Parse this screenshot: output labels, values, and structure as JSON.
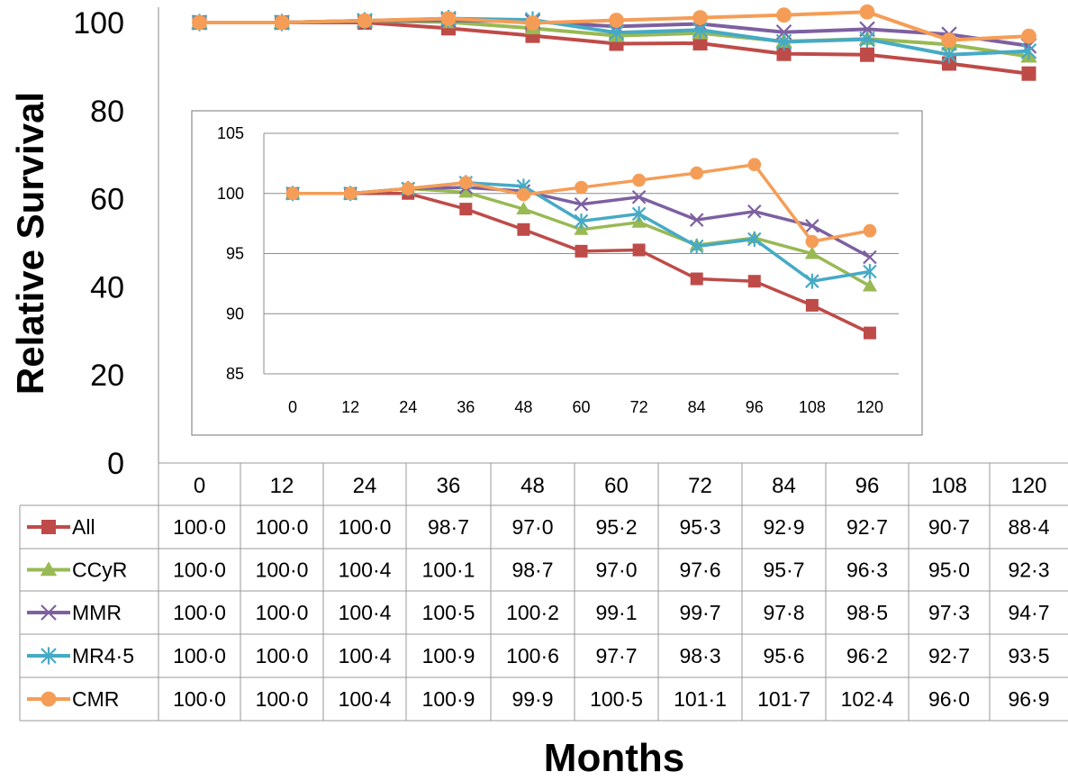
{
  "chart_data": [
    {
      "type": "line",
      "title": "",
      "xlabel": "Months",
      "ylabel": "Relative Survival",
      "ylim": [
        0,
        100
      ],
      "yticks": [
        0,
        20,
        40,
        60,
        80,
        100
      ],
      "categories": [
        "0",
        "12",
        "24",
        "36",
        "48",
        "60",
        "72",
        "84",
        "96",
        "108",
        "120"
      ],
      "grid": false,
      "legend": "data-table-left",
      "series": [
        {
          "name": "All",
          "color": "#BE4B48",
          "marker": "square",
          "values": [
            100.0,
            100.0,
            100.0,
            98.7,
            97.0,
            95.2,
            95.3,
            92.9,
            92.7,
            90.7,
            88.4
          ]
        },
        {
          "name": "CCyR",
          "color": "#98B954",
          "marker": "triangle",
          "values": [
            100.0,
            100.0,
            100.4,
            100.1,
            98.7,
            97.0,
            97.6,
            95.7,
            96.3,
            95.0,
            92.3
          ]
        },
        {
          "name": "MMR",
          "color": "#7D60A0",
          "marker": "x",
          "values": [
            100.0,
            100.0,
            100.4,
            100.5,
            100.2,
            99.1,
            99.7,
            97.8,
            98.5,
            97.3,
            94.7
          ]
        },
        {
          "name": "MR4·5",
          "color": "#46AAC5",
          "marker": "star",
          "values": [
            100.0,
            100.0,
            100.4,
            100.9,
            100.6,
            97.7,
            98.3,
            95.6,
            96.2,
            92.7,
            93.5
          ]
        },
        {
          "name": "CMR",
          "color": "#F59D56",
          "marker": "circle",
          "values": [
            100.0,
            100.0,
            100.4,
            100.9,
            99.9,
            100.5,
            101.1,
            101.7,
            102.4,
            96.0,
            96.9
          ]
        }
      ],
      "table": {
        "All": [
          "100·0",
          "100·0",
          "100·0",
          "98·7",
          "97·0",
          "95·2",
          "95·3",
          "92·9",
          "92·7",
          "90·7",
          "88·4"
        ],
        "CCyR": [
          "100·0",
          "100·0",
          "100·4",
          "100·1",
          "98·7",
          "97·0",
          "97·6",
          "95·7",
          "96·3",
          "95·0",
          "92·3"
        ],
        "MMR": [
          "100·0",
          "100·0",
          "100·4",
          "100·5",
          "100·2",
          "99·1",
          "99·7",
          "97·8",
          "98·5",
          "97·3",
          "94·7"
        ],
        "MR4·5": [
          "100·0",
          "100·0",
          "100·4",
          "100·9",
          "100·6",
          "97·7",
          "98·3",
          "95·6",
          "96·2",
          "92·7",
          "93·5"
        ],
        "CMR": [
          "100·0",
          "100·0",
          "100·4",
          "100·9",
          "99·9",
          "100·5",
          "101·1",
          "101·7",
          "102·4",
          "96·0",
          "96·9"
        ]
      }
    },
    {
      "type": "line",
      "title": "",
      "xlabel": "",
      "ylabel": "",
      "ylim": [
        85,
        105
      ],
      "yticks": [
        85,
        90,
        95,
        100,
        105
      ],
      "categories": [
        "0",
        "12",
        "24",
        "36",
        "48",
        "60",
        "72",
        "84",
        "96",
        "108",
        "120"
      ],
      "grid": true,
      "legend": "none",
      "series_ref": "same as main chart series"
    }
  ]
}
